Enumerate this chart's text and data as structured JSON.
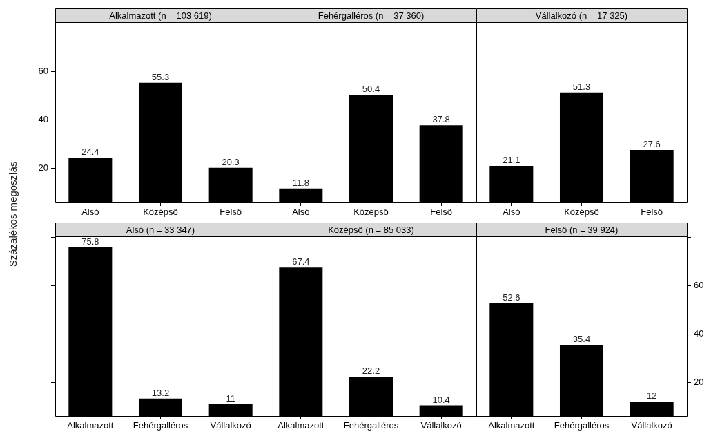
{
  "chart_data": [
    {
      "type": "bar",
      "title": "Alkalmazott (n = 103 619)",
      "ylabel": "Százalékos megoszlás",
      "categories": [
        "Alsó",
        "Középső",
        "Felső"
      ],
      "series": [
        {
          "color": "#000000",
          "values": [
            24.4,
            55.3,
            20.3
          ]
        }
      ],
      "ylim": [
        6,
        80.3
      ],
      "yticks": [
        20,
        40,
        60,
        {
          "value": 80,
          "label": null
        }
      ],
      "data_labels": true,
      "grid": false,
      "legend": false
    },
    {
      "type": "bar",
      "title": "Fehérgalléros (n = 37 360)",
      "categories": [
        "Alsó",
        "Középső",
        "Felső"
      ],
      "series": [
        {
          "color": "#000000",
          "values": [
            11.8,
            50.4,
            37.8
          ]
        }
      ],
      "ylim": [
        6,
        80.3
      ],
      "tick_labels": "x",
      "data_labels": true,
      "grid": false,
      "legend": false
    },
    {
      "type": "bar",
      "title": "Vállalkozó (n = 17 325)",
      "categories": [
        "Alsó",
        "Középső",
        "Felső"
      ],
      "series": [
        {
          "color": "#000000",
          "values": [
            21.1,
            51.3,
            27.6
          ]
        }
      ],
      "ylim": [
        6,
        80.3
      ],
      "tick_labels": "x",
      "data_labels": true,
      "grid": false,
      "legend": false
    },
    {
      "type": "bar",
      "title": "Alsó (n = 33 347)",
      "categories": [
        "Alkalmazott",
        "Fehérgalléros",
        "Vállalkozó"
      ],
      "series": [
        {
          "color": "#000000",
          "values": [
            75.8,
            13.2,
            11
          ]
        }
      ],
      "ylim": [
        6,
        80.3
      ],
      "yticks": [
        {
          "value": 20,
          "label": null
        },
        {
          "value": 40,
          "label": null
        },
        {
          "value": 60,
          "label": null
        },
        {
          "value": 80,
          "label": null
        }
      ],
      "tick_labels": "x",
      "data_labels": true,
      "grid": false,
      "legend": false
    },
    {
      "type": "bar",
      "title": "Középső (n = 85 033)",
      "categories": [
        "Alkalmazott",
        "Fehérgalléros",
        "Vállalkozó"
      ],
      "series": [
        {
          "color": "#000000",
          "values": [
            67.4,
            22.2,
            10.4
          ]
        }
      ],
      "ylim": [
        6,
        80.3
      ],
      "tick_labels": "x",
      "data_labels": true,
      "grid": false,
      "legend": false
    },
    {
      "type": "bar",
      "title": "Felső (n = 39 924)",
      "categories": [
        "Alkalmazott",
        "Fehérgalléros",
        "Vállalkozó"
      ],
      "series": [
        {
          "color": "#000000",
          "values": [
            52.6,
            35.4,
            12
          ],
          "axis": "y2"
        }
      ],
      "y2lim": [
        6,
        80.3
      ],
      "y2ticks": [
        20,
        40,
        60,
        {
          "value": 80,
          "label": null
        }
      ],
      "data_labels": true,
      "grid": false,
      "legend": false
    }
  ]
}
